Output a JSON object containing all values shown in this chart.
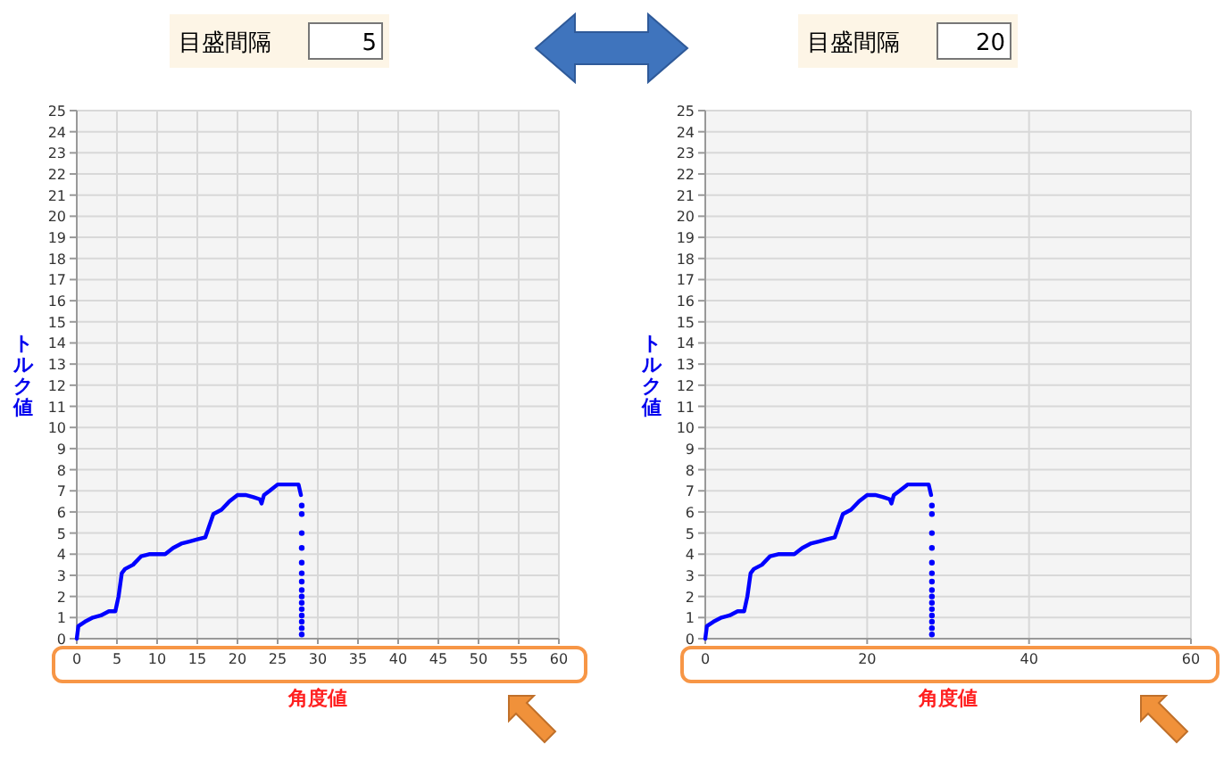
{
  "chart_data": [
    {
      "type": "line",
      "annotations": [
        "目盛間隔",
        "5"
      ],
      "xlabel": "角度値",
      "ylabel": "トルク値",
      "xlim": [
        0,
        60
      ],
      "xticks": [
        0,
        5,
        10,
        15,
        20,
        25,
        30,
        35,
        40,
        45,
        50,
        55,
        60
      ],
      "ylim": [
        0,
        25
      ],
      "yticks": [
        0,
        1,
        2,
        3,
        4,
        5,
        6,
        7,
        8,
        9,
        10,
        11,
        12,
        13,
        14,
        15,
        16,
        17,
        18,
        19,
        20,
        21,
        22,
        23,
        24,
        25
      ],
      "grid": true,
      "series": [
        {
          "color": "#0000ff",
          "marker": "none",
          "line_style": "solid",
          "x": [
            0,
            0.2,
            1,
            2,
            3,
            4,
            4.8,
            5.2,
            5.6,
            6,
            7,
            8,
            9,
            10,
            11,
            12,
            13,
            14,
            15,
            16,
            17,
            18,
            19,
            20,
            21,
            22,
            22.8,
            23,
            23.3,
            24,
            25,
            26,
            27,
            27.6,
            27.9
          ],
          "values": [
            0,
            0.6,
            0.8,
            1,
            1.1,
            1.3,
            1.3,
            2,
            3.1,
            3.3,
            3.5,
            3.9,
            4,
            4,
            4,
            4.3,
            4.5,
            4.6,
            4.7,
            4.8,
            5.9,
            6.1,
            6.5,
            6.8,
            6.8,
            6.7,
            6.6,
            6.4,
            6.8,
            7,
            7.3,
            7.3,
            7.3,
            7.3,
            6.8
          ]
        },
        {
          "type": "scatter",
          "color": "#0000ff",
          "marker": "circle",
          "x": [
            28,
            28,
            28,
            28,
            28,
            28,
            28,
            28,
            28,
            28,
            28,
            28,
            28,
            28,
            28
          ],
          "values": [
            6.3,
            5.9,
            5,
            4.3,
            3.6,
            3.1,
            2.7,
            2.3,
            2,
            1.7,
            1.4,
            1.1,
            0.8,
            0.5,
            0.2
          ]
        }
      ]
    },
    {
      "type": "line",
      "annotations": [
        "目盛間隔",
        "20"
      ],
      "xlabel": "角度値",
      "ylabel": "トルク値",
      "xlim": [
        0,
        60
      ],
      "xticks": [
        0,
        20,
        40,
        60
      ],
      "ylim": [
        0,
        25
      ],
      "yticks": [
        0,
        1,
        2,
        3,
        4,
        5,
        6,
        7,
        8,
        9,
        10,
        11,
        12,
        13,
        14,
        15,
        16,
        17,
        18,
        19,
        20,
        21,
        22,
        23,
        24,
        25
      ],
      "grid": true,
      "series": [
        {
          "color": "#0000ff",
          "marker": "none",
          "line_style": "solid",
          "x": [
            0,
            0.2,
            1,
            2,
            3,
            4,
            4.8,
            5.2,
            5.6,
            6,
            7,
            8,
            9,
            10,
            11,
            12,
            13,
            14,
            15,
            16,
            17,
            18,
            19,
            20,
            21,
            22,
            22.8,
            23,
            23.3,
            24,
            25,
            26,
            27,
            27.6,
            27.9
          ],
          "values": [
            0,
            0.6,
            0.8,
            1,
            1.1,
            1.3,
            1.3,
            2,
            3.1,
            3.3,
            3.5,
            3.9,
            4,
            4,
            4,
            4.3,
            4.5,
            4.6,
            4.7,
            4.8,
            5.9,
            6.1,
            6.5,
            6.8,
            6.8,
            6.7,
            6.6,
            6.4,
            6.8,
            7,
            7.3,
            7.3,
            7.3,
            7.3,
            6.8
          ]
        },
        {
          "type": "scatter",
          "color": "#0000ff",
          "marker": "circle",
          "x": [
            28,
            28,
            28,
            28,
            28,
            28,
            28,
            28,
            28,
            28,
            28,
            28,
            28,
            28,
            28
          ],
          "values": [
            6.3,
            5.9,
            5,
            4.3,
            3.6,
            3.1,
            2.7,
            2.3,
            2,
            1.7,
            1.4,
            1.1,
            0.8,
            0.5,
            0.2
          ]
        }
      ]
    }
  ]
}
